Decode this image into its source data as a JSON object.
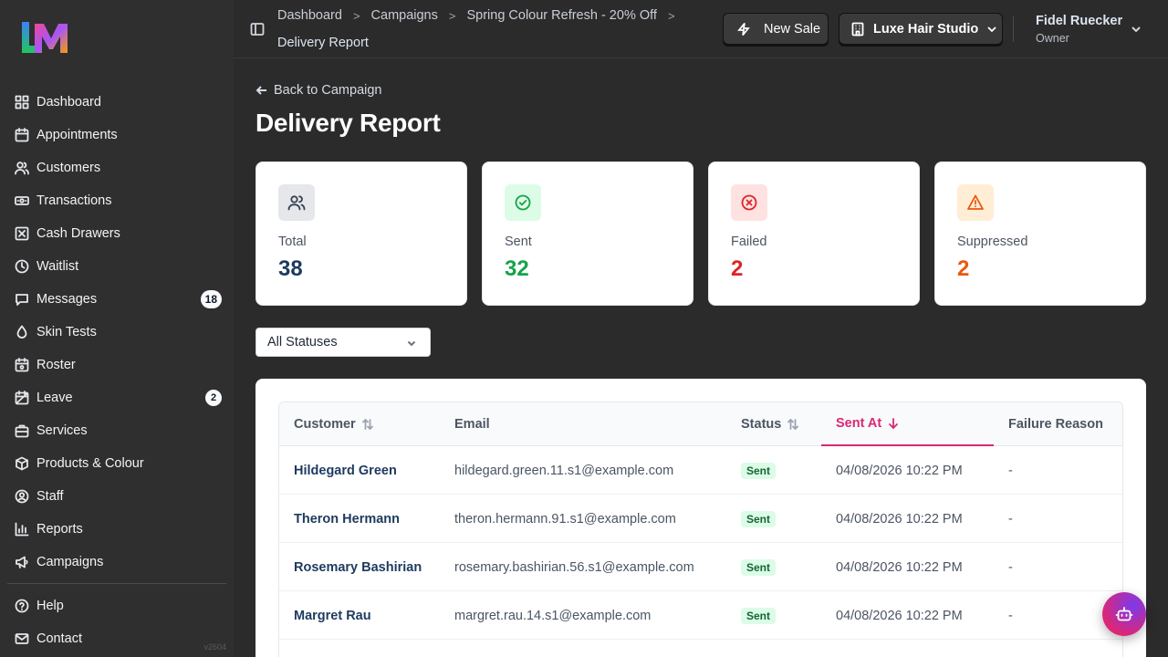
{
  "app": {
    "version": "v2604"
  },
  "sidebar": {
    "items": [
      {
        "label": "Dashboard",
        "icon": "grid-icon"
      },
      {
        "label": "Appointments",
        "icon": "calendar-icon"
      },
      {
        "label": "Customers",
        "icon": "users-icon"
      },
      {
        "label": "Transactions",
        "icon": "banknote-icon"
      },
      {
        "label": "Cash Drawers",
        "icon": "x-square-icon"
      },
      {
        "label": "Waitlist",
        "icon": "clock-icon"
      },
      {
        "label": "Messages",
        "icon": "message-icon",
        "badge": "18"
      },
      {
        "label": "Skin Tests",
        "icon": "droplet-icon"
      },
      {
        "label": "Roster",
        "icon": "calendar-grid-icon"
      },
      {
        "label": "Leave",
        "icon": "calendar-off-icon",
        "badge": "2"
      },
      {
        "label": "Services",
        "icon": "briefcase-icon"
      },
      {
        "label": "Products & Colour",
        "icon": "package-icon"
      },
      {
        "label": "Staff",
        "icon": "user-circle-icon"
      },
      {
        "label": "Reports",
        "icon": "bar-chart-icon"
      },
      {
        "label": "Campaigns",
        "icon": "megaphone-icon"
      }
    ],
    "footer_items": [
      {
        "label": "Help",
        "icon": "help-circle-icon"
      },
      {
        "label": "Contact",
        "icon": "mail-icon"
      }
    ]
  },
  "topbar": {
    "breadcrumbs": [
      "Dashboard",
      "Campaigns",
      "Spring Colour Refresh - 20% Off"
    ],
    "current": "Delivery Report",
    "new_sale_label": "New Sale",
    "studio_label": "Luxe Hair Studio",
    "user_name": "Fidel Ruecker",
    "user_role": "Owner"
  },
  "page": {
    "back_label": "Back to Campaign",
    "title": "Delivery Report"
  },
  "stats": [
    {
      "label": "Total",
      "value": "38",
      "color": "#1e3a5f",
      "bg": "#e5e7eb",
      "icon_color": "#374151",
      "icon": "users-icon"
    },
    {
      "label": "Sent",
      "value": "32",
      "color": "#16a34a",
      "bg": "#dcfce7",
      "icon_color": "#16a34a",
      "icon": "check-circle-icon"
    },
    {
      "label": "Failed",
      "value": "2",
      "color": "#dc2626",
      "bg": "#fee2e2",
      "icon_color": "#dc2626",
      "icon": "x-circle-icon"
    },
    {
      "label": "Suppressed",
      "value": "2",
      "color": "#ea580c",
      "bg": "#ffedd5",
      "icon_color": "#ea580c",
      "icon": "alert-triangle-icon"
    }
  ],
  "filter": {
    "selected": "All Statuses"
  },
  "table": {
    "columns": [
      "Customer",
      "Email",
      "Status",
      "Sent At",
      "Failure Reason"
    ],
    "rows": [
      {
        "customer": "Hildegard Green",
        "email": "hildegard.green.11.s1@example.com",
        "status": "Sent",
        "sent_at": "04/08/2026 10:22 PM",
        "failure": "-"
      },
      {
        "customer": "Theron Hermann",
        "email": "theron.hermann.91.s1@example.com",
        "status": "Sent",
        "sent_at": "04/08/2026 10:22 PM",
        "failure": "-"
      },
      {
        "customer": "Rosemary Bashirian",
        "email": "rosemary.bashirian.56.s1@example.com",
        "status": "Sent",
        "sent_at": "04/08/2026 10:22 PM",
        "failure": "-"
      },
      {
        "customer": "Margret Rau",
        "email": "margret.rau.14.s1@example.com",
        "status": "Sent",
        "sent_at": "04/08/2026 10:22 PM",
        "failure": "-"
      }
    ]
  },
  "colors": {
    "accent": "#db2777",
    "sidebar_bg": "#2f2f2f"
  }
}
